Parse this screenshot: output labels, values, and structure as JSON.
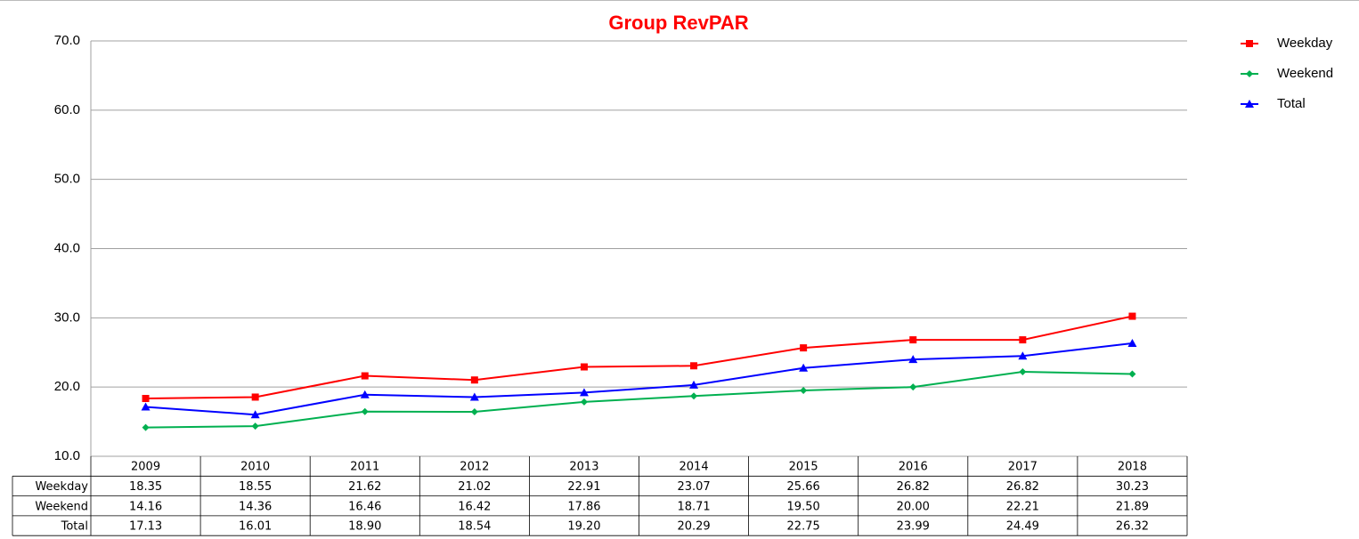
{
  "chart_data": {
    "type": "line",
    "title": "Group RevPAR",
    "categories": [
      "2009",
      "2010",
      "2011",
      "2012",
      "2013",
      "2014",
      "2015",
      "2016",
      "2017",
      "2018"
    ],
    "series": [
      {
        "name": "Weekday",
        "color": "#ff0000",
        "marker": "square",
        "values": [
          18.35,
          18.55,
          21.62,
          21.02,
          22.91,
          23.07,
          25.66,
          26.82,
          26.82,
          30.23
        ],
        "value_labels": [
          "18.35",
          "18.55",
          "21.62",
          "21.02",
          "22.91",
          "23.07",
          "25.66",
          "26.82",
          "26.82",
          "30.23"
        ]
      },
      {
        "name": "Weekend",
        "color": "#00b050",
        "marker": "diamond",
        "values": [
          14.16,
          14.36,
          16.46,
          16.42,
          17.86,
          18.71,
          19.5,
          20,
          22.21,
          21.89
        ],
        "value_labels": [
          "14.16",
          "14.36",
          "16.46",
          "16.42",
          "17.86",
          "18.71",
          "19.50",
          "20.00",
          "22.21",
          "21.89"
        ]
      },
      {
        "name": "Total",
        "color": "#0000ff",
        "marker": "triangle",
        "values": [
          17.13,
          16.01,
          18.9,
          18.54,
          19.2,
          20.29,
          22.75,
          23.99,
          24.49,
          26.32
        ],
        "value_labels": [
          "17.13",
          "16.01",
          "18.90",
          "18.54",
          "19.20",
          "20.29",
          "22.75",
          "23.99",
          "24.49",
          "26.32"
        ]
      }
    ],
    "ylim": [
      10,
      70
    ],
    "yticks": [
      {
        "value": 10,
        "label": "10.0"
      },
      {
        "value": 20,
        "label": "20.0"
      },
      {
        "value": 30,
        "label": "30.0"
      },
      {
        "value": 40,
        "label": "40.0"
      },
      {
        "value": 50,
        "label": "50.0"
      },
      {
        "value": 60,
        "label": "60.0"
      },
      {
        "value": 70,
        "label": "70.0"
      }
    ],
    "grid": true,
    "legend": "right",
    "data_table": true
  }
}
